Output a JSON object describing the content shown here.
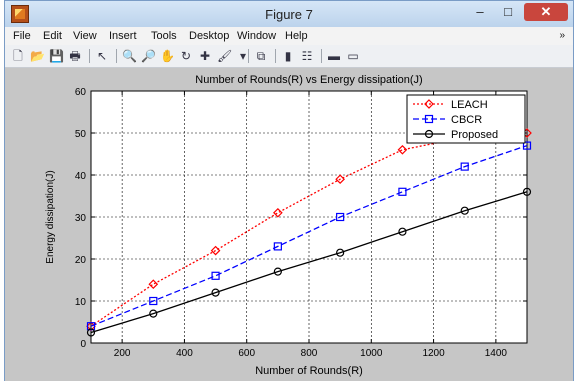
{
  "window": {
    "title": "Figure 7"
  },
  "controls": {
    "minimize": "–",
    "maximize": "□",
    "close": "✕"
  },
  "menu": [
    "File",
    "Edit",
    "View",
    "Insert",
    "Tools",
    "Desktop",
    "Window",
    "Help"
  ],
  "menu_overflow": "»",
  "toolbar": [
    {
      "name": "new-figure-icon",
      "glyph": "🗋"
    },
    {
      "name": "open-file-icon",
      "glyph": "📂"
    },
    {
      "name": "save-icon",
      "glyph": "💾"
    },
    {
      "name": "print-icon",
      "glyph": "🖶"
    },
    {
      "sep": true
    },
    {
      "name": "edit-plot-arrow-icon",
      "glyph": "↖"
    },
    {
      "sep": true
    },
    {
      "name": "zoom-in-icon",
      "glyph": "🔍"
    },
    {
      "name": "zoom-out-icon",
      "glyph": "🔎"
    },
    {
      "name": "pan-hand-icon",
      "glyph": "✋"
    },
    {
      "name": "rotate-3d-icon",
      "glyph": "↻"
    },
    {
      "name": "data-cursor-icon",
      "glyph": "✚"
    },
    {
      "name": "brush-icon",
      "glyph": "🖌"
    },
    {
      "name": "brush-dropdown-icon",
      "glyph": "▾"
    },
    {
      "sep": true
    },
    {
      "name": "link-plot-icon",
      "glyph": "⧉"
    },
    {
      "sep": true
    },
    {
      "name": "insert-colorbar-icon",
      "glyph": "▮"
    },
    {
      "name": "insert-legend-icon",
      "glyph": "☷"
    },
    {
      "sep": true
    },
    {
      "name": "hide-plot-tools-icon",
      "glyph": "▬"
    },
    {
      "name": "show-plot-tools-icon",
      "glyph": "▭"
    }
  ],
  "chart_data": {
    "type": "line",
    "title": "Number of Rounds(R) vs Energy dissipation(J)",
    "xlabel": "Number of Rounds(R)",
    "ylabel": "Energy dissipation(J)",
    "xlim": [
      100,
      1500
    ],
    "ylim": [
      0,
      60
    ],
    "xticks": [
      200,
      400,
      600,
      800,
      1000,
      1200,
      1400
    ],
    "yticks": [
      0,
      10,
      20,
      30,
      40,
      50,
      60
    ],
    "grid": true,
    "legend_position": "top-right",
    "x": [
      100,
      300,
      500,
      700,
      900,
      1100,
      1300,
      1500
    ],
    "series": [
      {
        "name": "LEACH",
        "color": "#ff0000",
        "marker": "diamond",
        "dash": "dotted",
        "values": [
          4,
          14,
          22,
          31,
          39,
          46,
          49,
          50
        ]
      },
      {
        "name": "CBCR",
        "color": "#0000ff",
        "marker": "square",
        "dash": "dashed",
        "values": [
          4,
          10,
          16,
          23,
          30,
          36,
          42,
          47
        ]
      },
      {
        "name": "Proposed",
        "color": "#000000",
        "marker": "circle",
        "dash": "solid",
        "values": [
          2.5,
          7,
          12,
          17,
          21.5,
          26.5,
          31.5,
          36
        ]
      }
    ]
  }
}
